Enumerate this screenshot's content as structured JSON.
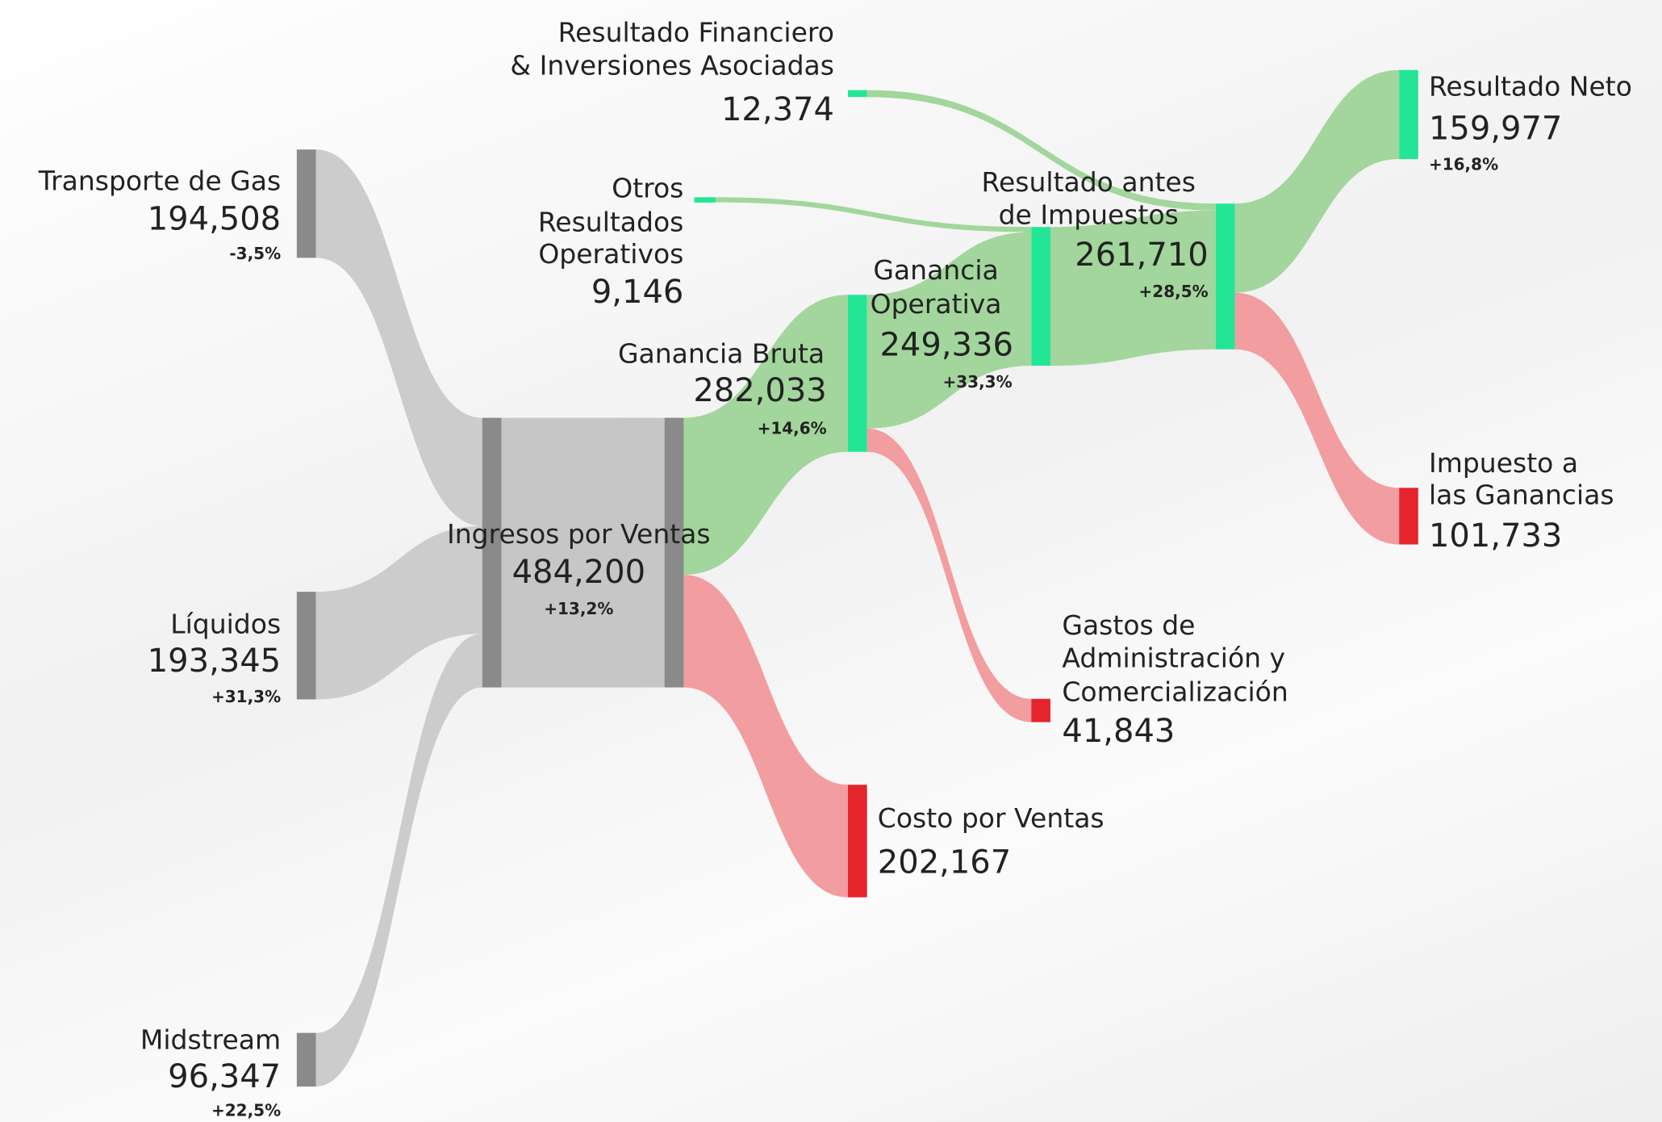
{
  "chart_data": {
    "type": "sankey",
    "nodes": [
      {
        "name": [
          "Transporte de Gas"
        ],
        "value": 194508,
        "value_label": "194,508",
        "change": -3.5,
        "change_label": "-3,5%",
        "color": "#8a8a8a"
      },
      {
        "name": [
          "Líquidos"
        ],
        "value": 193345,
        "value_label": "193,345",
        "change": 31.3,
        "change_label": "+31,3%",
        "color": "#8a8a8a"
      },
      {
        "name": [
          "Midstream"
        ],
        "value": 96347,
        "value_label": "96,347",
        "change": 22.5,
        "change_label": "+22,5%",
        "color": "#8a8a8a"
      },
      {
        "name": [
          "Ingresos por Ventas"
        ],
        "value": 484200,
        "value_label": "484,200",
        "change": 13.2,
        "change_label": "+13,2%",
        "color": "#8a8a8a"
      },
      {
        "name": [
          "Ganancia Bruta"
        ],
        "value": 282033,
        "value_label": "282,033",
        "change": 14.6,
        "change_label": "+14,6%",
        "color": "#22e696"
      },
      {
        "name": [
          "Costo por Ventas"
        ],
        "value": 202167,
        "value_label": "202,167",
        "color": "#e5242b"
      },
      {
        "name": [
          "Otros",
          "Resultados",
          "Operativos"
        ],
        "value": 9146,
        "value_label": "9,146",
        "color": "#22e696"
      },
      {
        "name": [
          "Ganancia",
          "Operativa"
        ],
        "value": 249336,
        "value_label": "249,336",
        "change": 33.3,
        "change_label": "+33,3%",
        "color": "#22e696"
      },
      {
        "name": [
          "Gastos de",
          "Administración y",
          "Comercialización"
        ],
        "value": 41843,
        "value_label": "41,843",
        "color": "#e5242b"
      },
      {
        "name": [
          "Resultado Financiero",
          "& Inversiones Asociadas"
        ],
        "value": 12374,
        "value_label": "12,374",
        "color": "#22e696"
      },
      {
        "name": [
          "Resultado antes",
          "de Impuestos"
        ],
        "value": 261710,
        "value_label": "261,710",
        "change": 28.5,
        "change_label": "+28,5%",
        "color": "#22e696"
      },
      {
        "name": [
          "Resultado Neto"
        ],
        "value": 159977,
        "value_label": "159,977",
        "change": 16.8,
        "change_label": "+16,8%",
        "color": "#22e696"
      },
      {
        "name": [
          "Impuesto a",
          "las Ganancias"
        ],
        "value": 101733,
        "value_label": "101,733",
        "color": "#e5242b"
      }
    ],
    "links": [
      {
        "source": 0,
        "target": 3,
        "color": "#c9c9c9"
      },
      {
        "source": 1,
        "target": 3,
        "color": "#c9c9c9"
      },
      {
        "source": 2,
        "target": 3,
        "color": "#c9c9c9"
      },
      {
        "source": 3,
        "target": 4,
        "color": "#9dd497"
      },
      {
        "source": 3,
        "target": 5,
        "color": "#f1989b"
      },
      {
        "source": 6,
        "target": 7,
        "color": "#9dd497"
      },
      {
        "source": 4,
        "target": 7,
        "color": "#9dd497"
      },
      {
        "source": 4,
        "target": 8,
        "color": "#f1989b"
      },
      {
        "source": 9,
        "target": 10,
        "color": "#9dd497"
      },
      {
        "source": 7,
        "target": 10,
        "color": "#9dd497"
      },
      {
        "source": 10,
        "target": 11,
        "color": "#9dd497"
      },
      {
        "source": 10,
        "target": 12,
        "color": "#f1989b"
      }
    ]
  }
}
